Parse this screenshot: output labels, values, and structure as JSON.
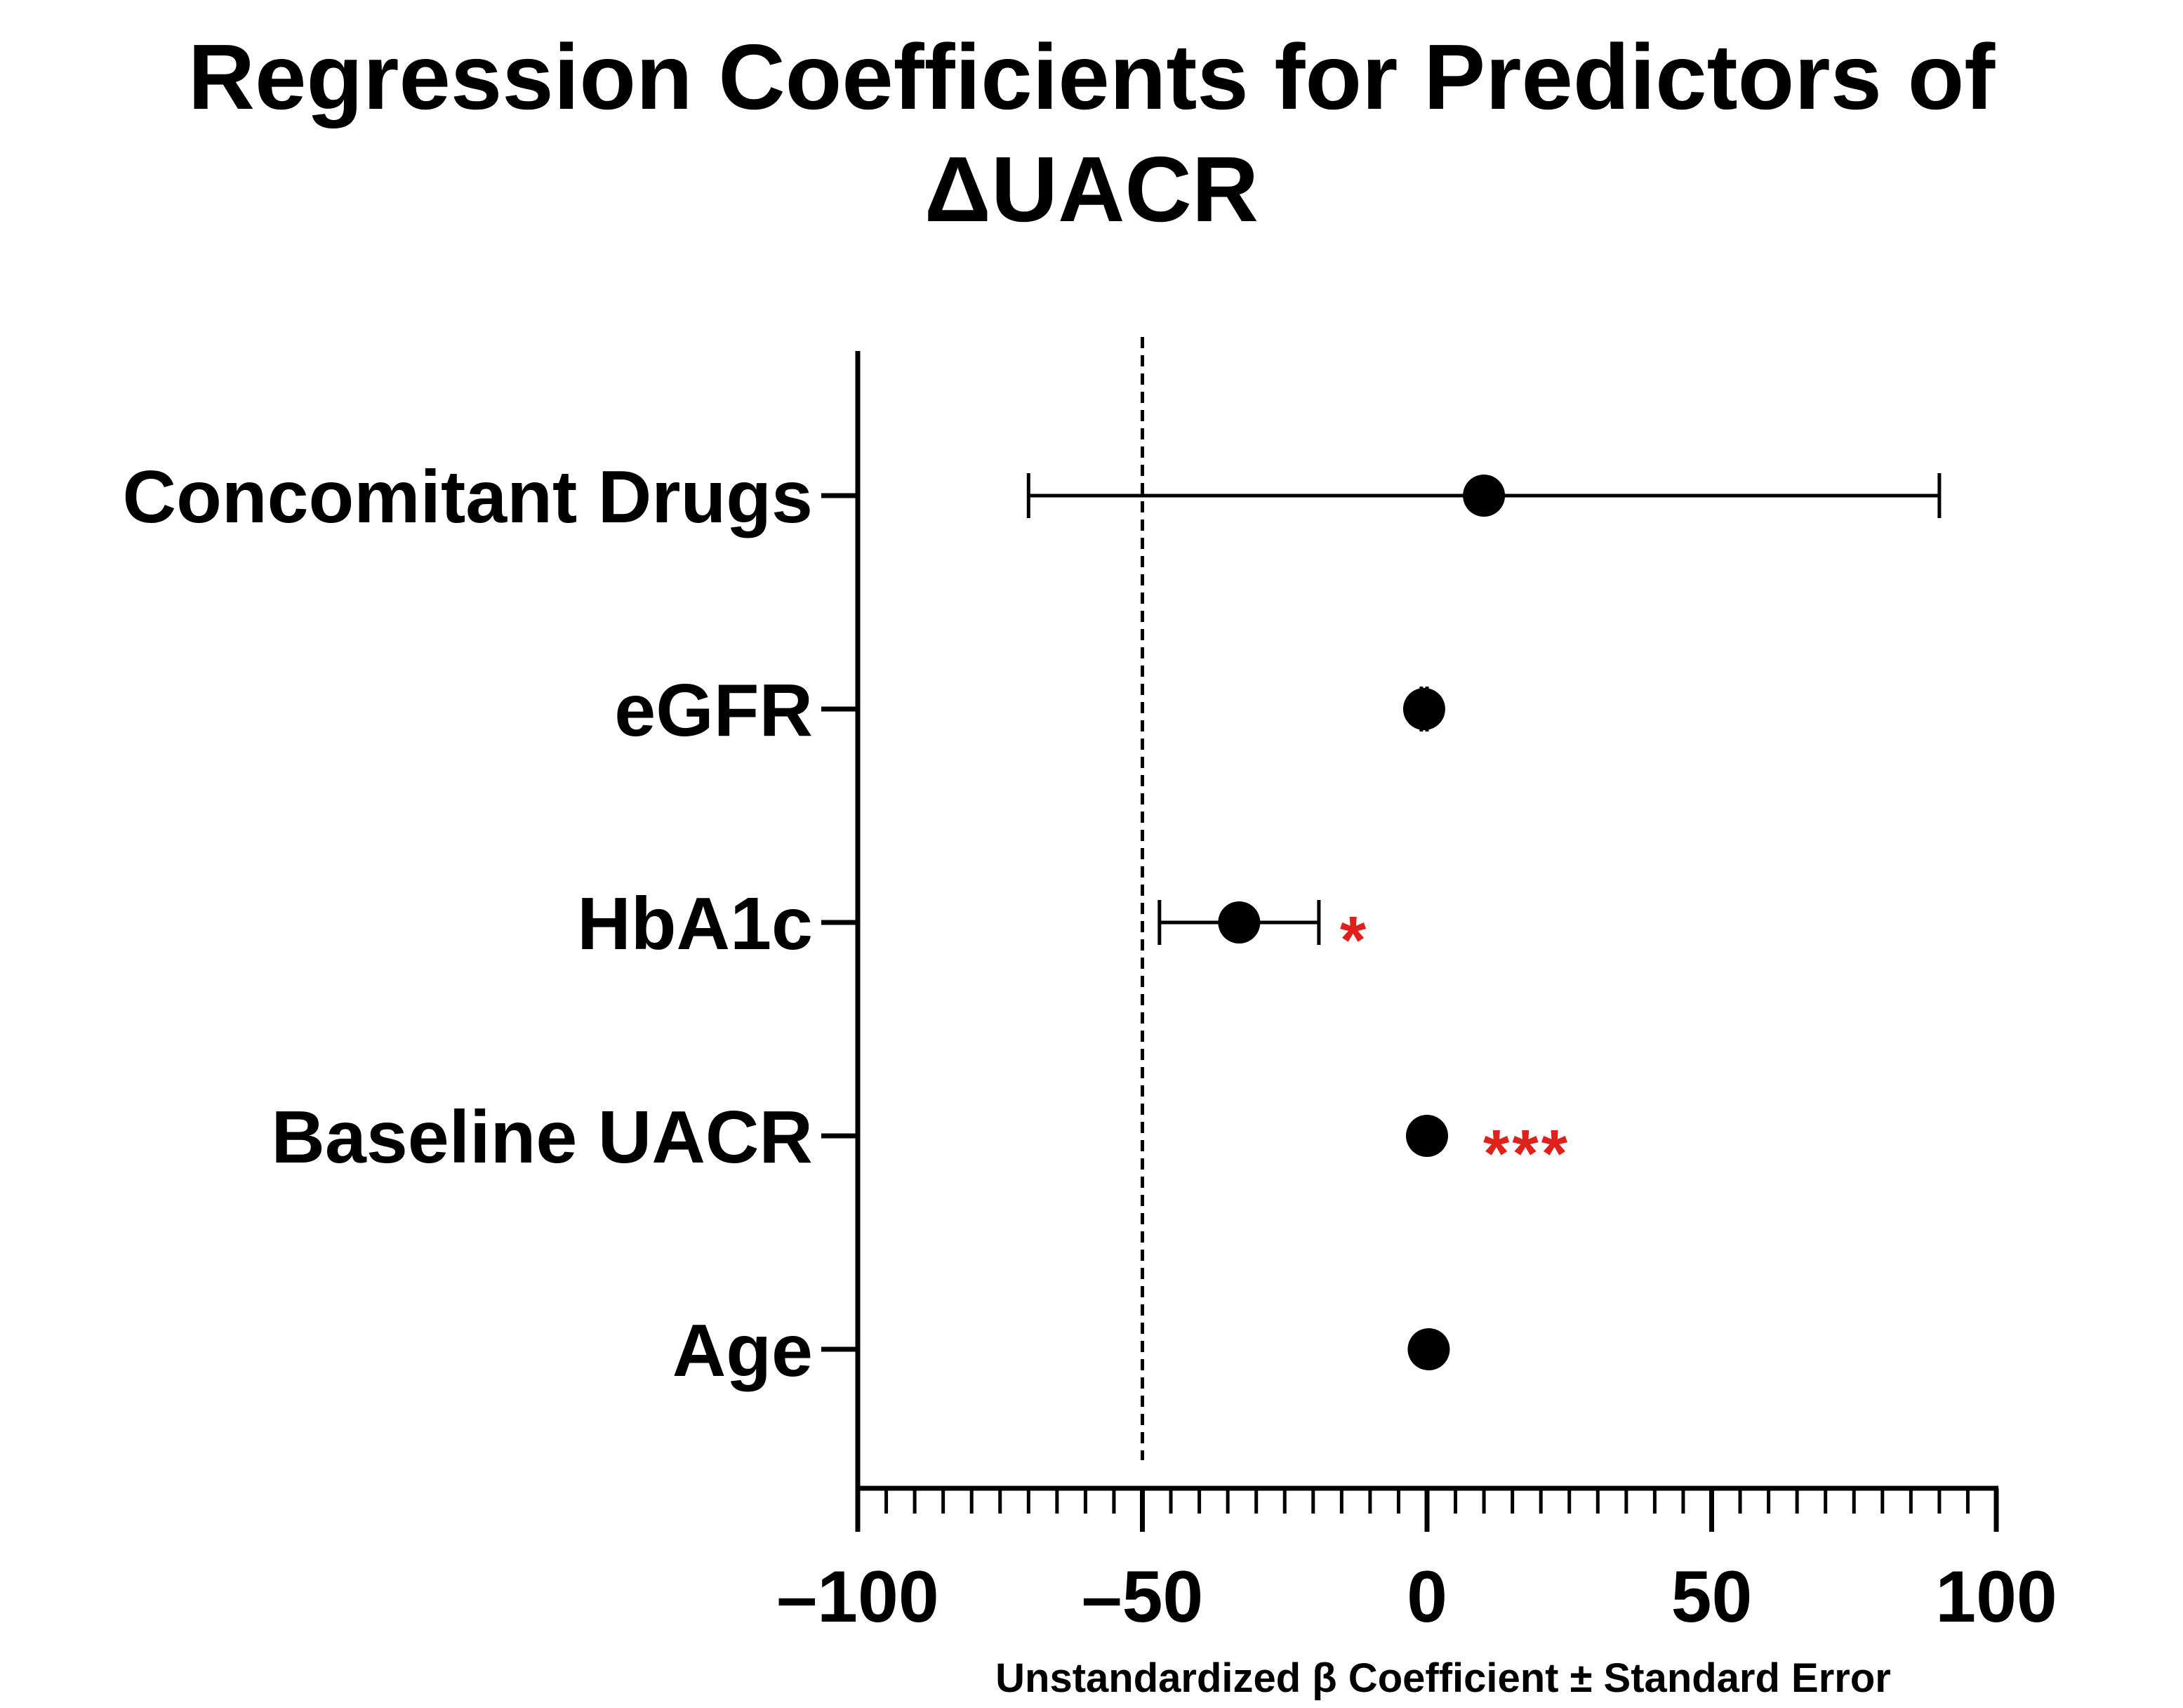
{
  "chart_data": {
    "type": "forest",
    "title_line1": "Regression Coefficients for Predictors of",
    "title_line2": "ΔUACR",
    "xlabel": "Unstandardized β Coefficient ± Standard Error",
    "xlim": [
      -100,
      100
    ],
    "xticks": [
      -100,
      -50,
      0,
      50,
      100
    ],
    "xtick_labels": [
      "–100",
      "–50",
      "0",
      "50",
      "100"
    ],
    "minor_tick_step": 5,
    "reference_line_x": -50,
    "predictors": [
      {
        "name": "Concomitant Drugs",
        "estimate": 10,
        "lower": -70,
        "upper": 90,
        "significance": ""
      },
      {
        "name": "eGFR",
        "estimate": -0.5,
        "lower": -1,
        "upper": 0,
        "significance": ""
      },
      {
        "name": "HbA1c",
        "estimate": -33,
        "lower": -47,
        "upper": -19,
        "significance": "*"
      },
      {
        "name": "Baseline UACR",
        "estimate": 0,
        "lower": 0,
        "upper": 0,
        "significance": "***"
      },
      {
        "name": "Age",
        "estimate": 0.3,
        "lower": 0.3,
        "upper": 0.3,
        "significance": ""
      }
    ],
    "colors": {
      "marker": "#000000",
      "axis": "#000000",
      "significance": "#e0201b"
    }
  }
}
